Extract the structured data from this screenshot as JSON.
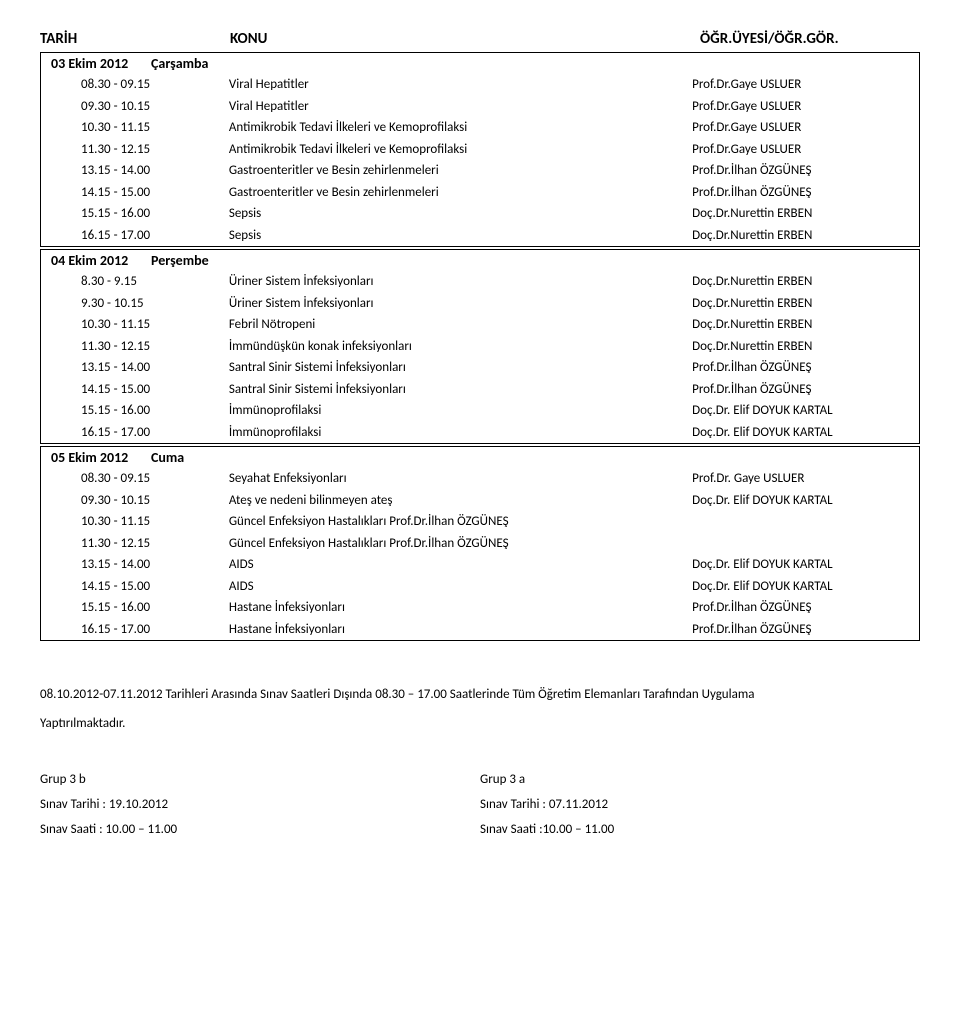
{
  "header": {
    "col1": "TARİH",
    "col2": "KONU",
    "col3": "ÖĞR.ÜYESİ/ÖĞR.GÖR."
  },
  "days": [
    {
      "date": "03 Ekim 2012",
      "weekday": "Çarşamba",
      "rows": [
        {
          "time": "08.30 - 09.15",
          "topic": "Viral Hepatitler",
          "lecturer": "Prof.Dr.Gaye USLUER"
        },
        {
          "time": "09.30 - 10.15",
          "topic": "Viral Hepatitler",
          "lecturer": "Prof.Dr.Gaye USLUER"
        },
        {
          "time": "10.30 - 11.15",
          "topic": "Antimikrobik Tedavi İlkeleri    ve Kemoprofilaksi",
          "lecturer": "Prof.Dr.Gaye USLUER"
        },
        {
          "time": "11.30 - 12.15",
          "topic": "Antimikrobik Tedavi İlkeleri    ve Kemoprofilaksi",
          "lecturer": "Prof.Dr.Gaye USLUER"
        },
        {
          "time": "13.15 - 14.00",
          "topic": "Gastroenteritler ve Besin zehirlenmeleri",
          "lecturer": "Prof.Dr.İlhan ÖZGÜNEŞ"
        },
        {
          "time": "14.15 - 15.00",
          "topic": "Gastroenteritler ve Besin zehirlenmeleri",
          "lecturer": "Prof.Dr.İlhan ÖZGÜNEŞ"
        },
        {
          "time": "15.15 - 16.00",
          "topic": "Sepsis",
          "lecturer": "Doç.Dr.Nurettin ERBEN"
        },
        {
          "time": "16.15 - 17.00",
          "topic": "Sepsis",
          "lecturer": "Doç.Dr.Nurettin ERBEN"
        }
      ]
    },
    {
      "date": "04 Ekim 2012",
      "weekday": "Perşembe",
      "rows": [
        {
          "time": "8.30  -  9.15",
          "topic": "Üriner Sistem İnfeksiyonları",
          "lecturer": "Doç.Dr.Nurettin ERBEN"
        },
        {
          "time": "9.30 - 10.15",
          "topic": "Üriner Sistem İnfeksiyonları",
          "lecturer": "Doç.Dr.Nurettin ERBEN"
        },
        {
          "time": "10.30 - 11.15",
          "topic": "Febril Nötropeni",
          "lecturer": "Doç.Dr.Nurettin ERBEN"
        },
        {
          "time": "11.30 - 12.15",
          "topic": "İmmündüşkün konak infeksiyonları",
          "lecturer": "Doç.Dr.Nurettin ERBEN"
        },
        {
          "time": "13.15 - 14.00",
          "topic": "Santral Sinir Sistemi İnfeksiyonları",
          "lecturer": "Prof.Dr.İlhan ÖZGÜNEŞ"
        },
        {
          "time": "14.15 - 15.00",
          "topic": "Santral Sinir Sistemi İnfeksiyonları",
          "lecturer": "Prof.Dr.İlhan ÖZGÜNEŞ"
        },
        {
          "time": "15.15 - 16.00",
          "topic": "İmmünoprofilaksi",
          "lecturer": "Doç.Dr. Elif DOYUK KARTAL"
        },
        {
          "time": "16.15 - 17.00",
          "topic": "İmmünoprofilaksi",
          "lecturer": "Doç.Dr. Elif DOYUK KARTAL"
        }
      ]
    },
    {
      "date": "05 Ekim 2012",
      "weekday": "Cuma",
      "rows": [
        {
          "time": "08.30 - 09.15",
          "topic": "Seyahat Enfeksiyonları",
          "lecturer": "Prof.Dr. Gaye USLUER"
        },
        {
          "time": "09.30 - 10.15",
          "topic": "Ateş ve nedeni bilinmeyen ateş",
          "lecturer": "Doç.Dr. Elif DOYUK KARTAL"
        },
        {
          "time": "10.30 - 11.15",
          "topic": "Güncel Enfeksiyon Hastalıkları Prof.Dr.İlhan ÖZGÜNEŞ",
          "lecturer": ""
        },
        {
          "time": "11.30 - 12.15",
          "topic": "Güncel Enfeksiyon Hastalıkları Prof.Dr.İlhan ÖZGÜNEŞ",
          "lecturer": ""
        },
        {
          "time": "13.15 - 14.00",
          "topic": "AIDS",
          "lecturer": "Doç.Dr. Elif DOYUK KARTAL"
        },
        {
          "time": "14.15 - 15.00",
          "topic": "AIDS",
          "lecturer": "Doç.Dr. Elif DOYUK KARTAL"
        },
        {
          "time": "15.15 - 16.00",
          "topic": "Hastane İnfeksiyonları",
          "lecturer": "Prof.Dr.İlhan ÖZGÜNEŞ"
        },
        {
          "time": "16.15 - 17.00",
          "topic": "Hastane İnfeksiyonları",
          "lecturer": "Prof.Dr.İlhan ÖZGÜNEŞ"
        }
      ]
    }
  ],
  "footer": {
    "line1": "08.10.2012-07.11.2012 Tarihleri Arasında Sınav Saatleri Dışında 08.30 – 17.00   Saatlerinde Tüm Öğretim Elemanları Tarafından Uygulama",
    "line2": "Yaptırılmaktadır."
  },
  "groups": {
    "left": {
      "name": "Grup 3 b",
      "exam_date": "Sınav Tarihi : 19.10.2012",
      "exam_time": "Sınav Saati : 10.00 – 11.00"
    },
    "right": {
      "name": "Grup 3 a",
      "exam_date": "Sınav Tarihi : 07.11.2012",
      "exam_time": "Sınav Saati :10.00 – 11.00"
    }
  }
}
